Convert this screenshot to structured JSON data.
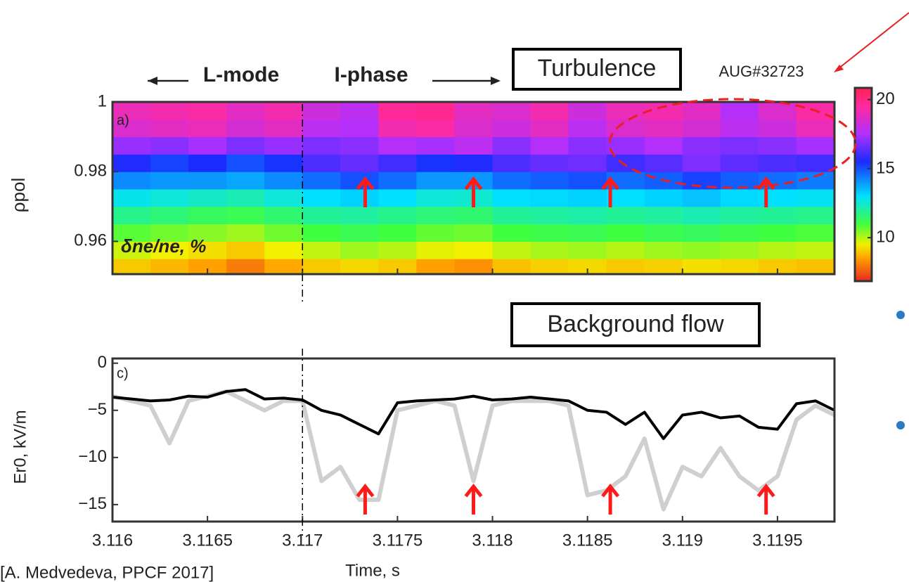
{
  "slide": {
    "turbulence_box": "Turbulence",
    "flow_box": "Background flow",
    "lmode": "L-mode",
    "iphase": "I-phase",
    "shot": "AUG#32723",
    "citation": "[A. Medvedeva, PPCF 2017]"
  },
  "chart_data": [
    {
      "type": "heatmap",
      "panel_label": "a)",
      "ylabel": "ρpol",
      "inner_label": "δne/ne, %",
      "bins_x": [
        3.116,
        3.1162,
        3.1164,
        3.1166,
        3.1168,
        3.117,
        3.1172,
        3.1174,
        3.1176,
        3.1178,
        3.118,
        3.1182,
        3.1184,
        3.1186,
        3.1188,
        3.119,
        3.1192,
        3.1194,
        3.1196,
        3.1198
      ],
      "bins_y": [
        0.9506,
        0.955,
        0.96,
        0.965,
        0.97,
        0.975,
        0.98,
        0.985,
        0.99,
        0.995,
        1.0
      ],
      "values": [
        [
          9.0,
          8.8,
          8.5,
          8.0,
          8.6,
          9.0,
          9.2,
          9.0,
          8.5,
          8.3,
          8.9,
          9.1,
          9.2,
          9.0,
          9.1,
          9.3,
          9.2,
          9.0,
          8.9
        ],
        [
          9.8,
          9.5,
          9.3,
          9.0,
          9.5,
          9.9,
          10.2,
          10.0,
          9.6,
          9.5,
          9.9,
          10.1,
          10.2,
          10.0,
          10.2,
          10.3,
          10.2,
          10.0,
          9.9
        ],
        [
          10.8,
          10.6,
          10.4,
          10.2,
          10.6,
          11.0,
          11.2,
          11.0,
          10.7,
          10.6,
          11.0,
          11.1,
          11.2,
          11.0,
          11.2,
          11.3,
          11.1,
          11.0,
          10.9
        ],
        [
          11.8,
          11.6,
          11.3,
          11.2,
          11.5,
          11.9,
          12.0,
          11.8,
          11.6,
          11.5,
          11.9,
          12.0,
          12.1,
          11.9,
          12.0,
          12.2,
          12.0,
          11.9,
          11.8
        ],
        [
          12.8,
          12.6,
          12.4,
          12.2,
          12.6,
          13.0,
          13.2,
          13.0,
          12.6,
          12.5,
          13.0,
          13.1,
          13.2,
          13.0,
          13.2,
          13.4,
          13.1,
          13.0,
          12.9
        ],
        [
          14.2,
          14.0,
          14.0,
          13.8,
          14.2,
          14.6,
          15.0,
          14.6,
          14.0,
          14.0,
          14.6,
          14.8,
          15.0,
          14.6,
          14.8,
          15.2,
          14.8,
          14.6,
          14.4
        ],
        [
          15.6,
          15.2,
          15.5,
          15.0,
          15.4,
          16.2,
          16.5,
          16.0,
          15.4,
          15.6,
          16.2,
          16.5,
          16.6,
          16.0,
          16.3,
          16.8,
          16.4,
          16.2,
          16.0
        ],
        [
          17.2,
          17.0,
          17.4,
          16.8,
          17.2,
          16.8,
          17.0,
          17.6,
          17.4,
          17.8,
          17.0,
          17.6,
          17.0,
          17.2,
          17.6,
          17.0,
          16.8,
          17.0,
          17.4
        ],
        [
          18.6,
          18.8,
          19.0,
          18.4,
          18.8,
          17.8,
          17.6,
          19.2,
          19.4,
          18.6,
          18.2,
          18.8,
          17.8,
          18.6,
          18.8,
          18.4,
          17.8,
          18.2,
          19.0
        ],
        [
          19.0,
          19.2,
          19.4,
          18.8,
          19.2,
          18.2,
          17.8,
          19.6,
          19.8,
          18.8,
          18.6,
          19.2,
          18.2,
          19.0,
          19.2,
          18.8,
          17.6,
          18.6,
          19.4
        ]
      ],
      "xlim": [
        3.116,
        3.1198
      ],
      "xticks": [
        3.116,
        3.1165,
        3.117,
        3.1175,
        3.118,
        3.1185,
        3.119,
        3.1195
      ],
      "ylim": [
        0.9506,
        1.0
      ],
      "yticks": [
        0.96,
        0.98,
        1
      ],
      "clim": [
        6.85,
        20.85
      ],
      "cticks": [
        10,
        15,
        20
      ],
      "colormap": [
        [
          6.85,
          "#e8281e"
        ],
        [
          8.5,
          "#ffa000"
        ],
        [
          9.5,
          "#f0f000"
        ],
        [
          11,
          "#40ff40"
        ],
        [
          13,
          "#00e0ff"
        ],
        [
          15.5,
          "#1a2cff"
        ],
        [
          17.5,
          "#b030ff"
        ],
        [
          19.5,
          "#ff2aa0"
        ],
        [
          20.85,
          "#ff2050"
        ]
      ],
      "vline": 3.117,
      "arrows": [
        3.11733,
        3.1179,
        3.11862,
        3.11944
      ],
      "arrow_color": "#ff1a1a"
    },
    {
      "type": "line",
      "panel_label": "c)",
      "ylabel": "Er0, kV/m",
      "xlabel": "Time, s",
      "x": [
        3.116,
        3.1161,
        3.1162,
        3.1163,
        3.1164,
        3.1165,
        3.1166,
        3.1167,
        3.1168,
        3.1169,
        3.117,
        3.1171,
        3.1172,
        3.1173,
        3.1174,
        3.1175,
        3.1176,
        3.1177,
        3.1178,
        3.1179,
        3.118,
        3.1181,
        3.1182,
        3.1183,
        3.1184,
        3.1185,
        3.1186,
        3.1187,
        3.1188,
        3.1189,
        3.119,
        3.1191,
        3.1192,
        3.1193,
        3.1194,
        3.1195,
        3.1196,
        3.1197,
        3.1198
      ],
      "series": [
        {
          "color": "#cfcfcf",
          "values": [
            -3.5,
            -4,
            -4.5,
            -8.5,
            -4,
            -3.5,
            -3,
            -4,
            -5,
            -4,
            -4,
            -12.5,
            -11,
            -14.5,
            -14.5,
            -5,
            -4.5,
            -4,
            -4.5,
            -12.5,
            -4.5,
            -4,
            -4,
            -4,
            -4.5,
            -14,
            -13.5,
            -12,
            -8,
            -15.5,
            -11,
            -12,
            -9,
            -12,
            -13.5,
            -12,
            -6,
            -4.5,
            -5.5
          ]
        },
        {
          "color": "#000000",
          "values": [
            -3.6,
            -3.8,
            -4.0,
            -3.9,
            -3.5,
            -3.6,
            -3.0,
            -2.8,
            -3.8,
            -3.7,
            -3.9,
            -5.0,
            -5.5,
            -6.5,
            -7.5,
            -4.2,
            -4.0,
            -3.9,
            -3.8,
            -3.5,
            -3.9,
            -3.8,
            -3.6,
            -3.8,
            -4.0,
            -5.0,
            -5.2,
            -6.5,
            -5.2,
            -8.0,
            -5.5,
            -5.2,
            -5.8,
            -5.6,
            -6.8,
            -7.0,
            -4.3,
            -4.0,
            -5.0
          ]
        }
      ],
      "xlim": [
        3.116,
        3.1198
      ],
      "xticks": [
        3.116,
        3.1165,
        3.117,
        3.1175,
        3.118,
        3.1185,
        3.119,
        3.1195
      ],
      "ylim": [
        -16.8,
        0.5
      ],
      "yticks": [
        0,
        {
          "value": -5,
          "label": "−5"
        },
        {
          "value": -10,
          "label": "−10"
        },
        {
          "value": -15,
          "label": "−15"
        }
      ],
      "vline": 3.117,
      "arrows": [
        3.11733,
        3.1179,
        3.11862,
        3.11944
      ],
      "arrow_color": "#ff1a1a"
    }
  ]
}
